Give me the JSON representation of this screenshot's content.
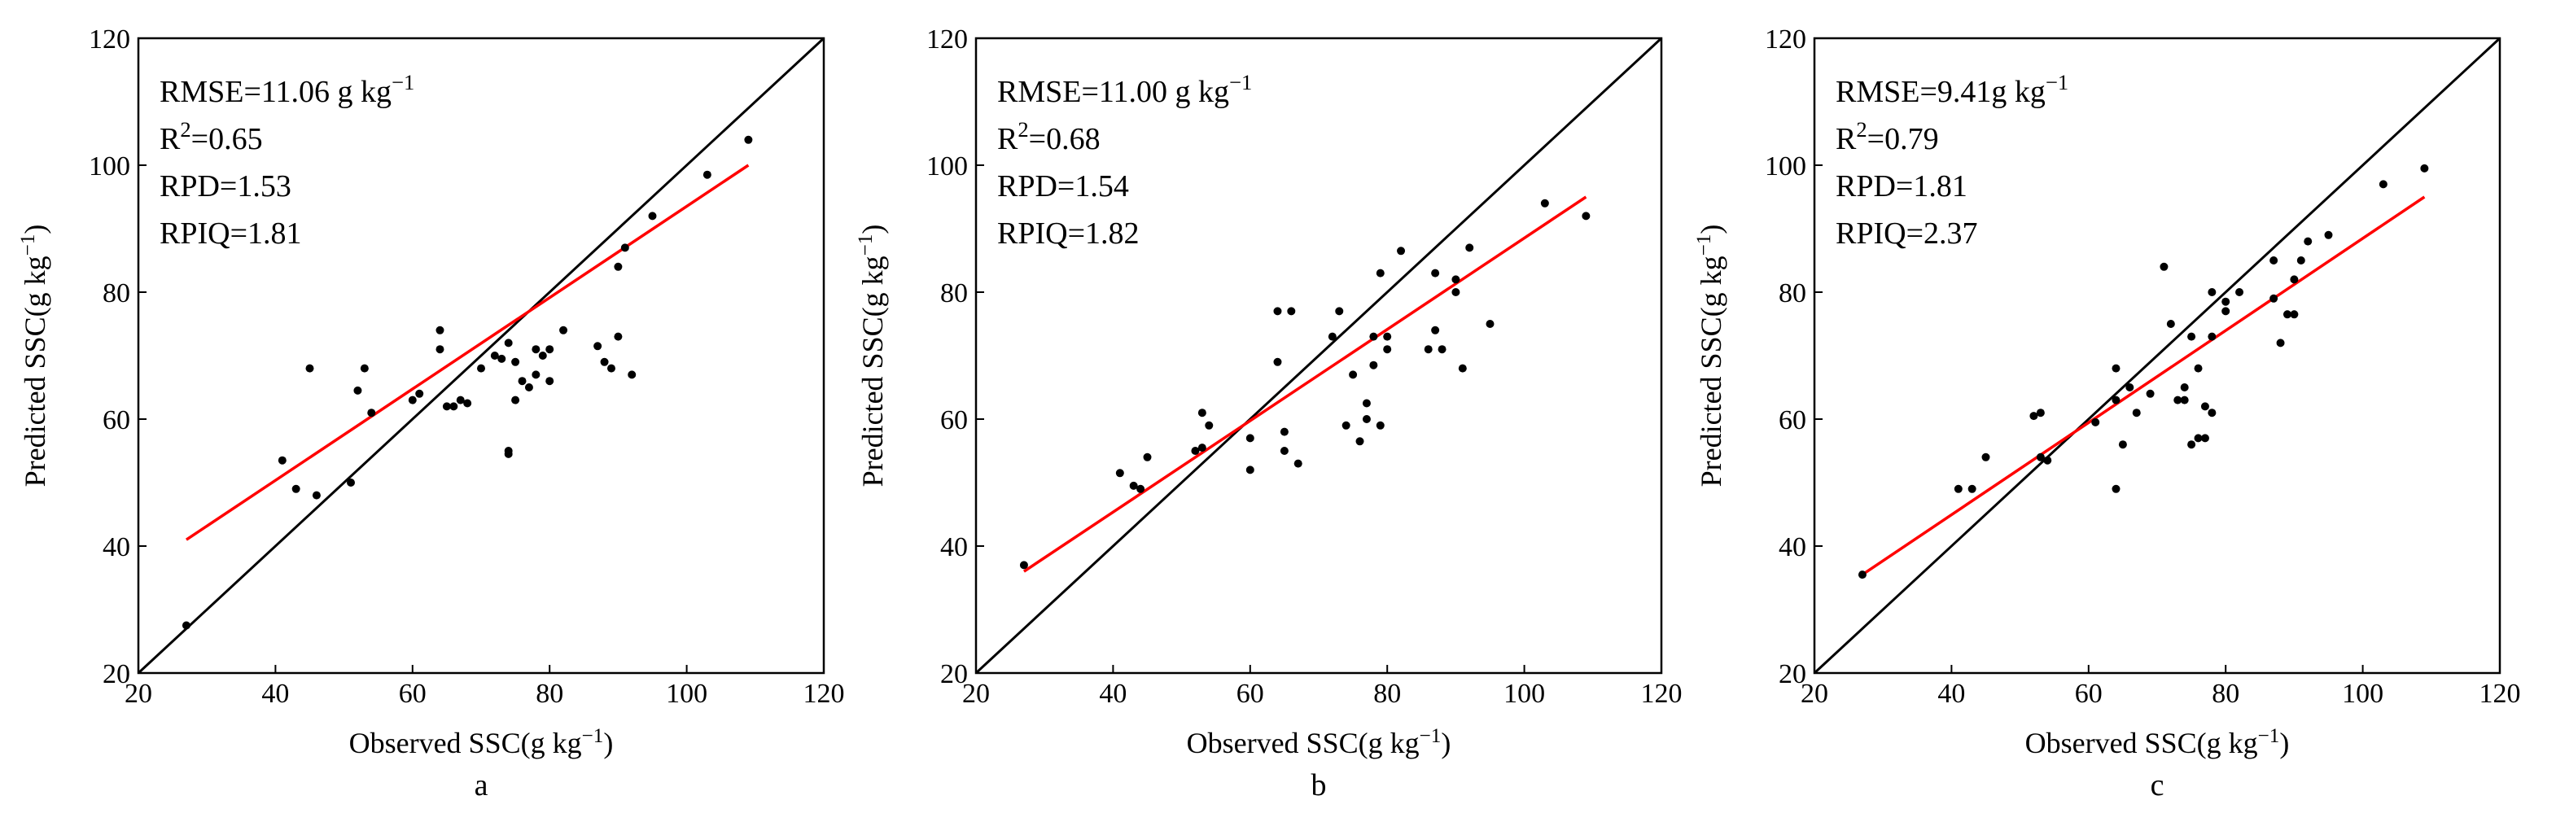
{
  "chart_data": [
    {
      "type": "scatter",
      "panel": "a",
      "xlabel": "Observed SSC(g kg⁻¹)",
      "ylabel": "Predicted SSC(g kg⁻¹)",
      "xlim": [
        20,
        120
      ],
      "ylim": [
        20,
        120
      ],
      "xticks": [
        20,
        40,
        60,
        80,
        100,
        120
      ],
      "yticks": [
        20,
        40,
        60,
        80,
        100,
        120
      ],
      "stats": [
        "RMSE=11.06 g kg⁻¹",
        "R²=0.65",
        "RPD=1.53",
        "RPIQ=1.81"
      ],
      "one_to_one": [
        [
          20,
          20
        ],
        [
          120,
          120
        ]
      ],
      "fit_line": [
        [
          27,
          41
        ],
        [
          109,
          100
        ]
      ],
      "fit_color": "#ff0000",
      "points": [
        [
          27,
          27.5
        ],
        [
          41,
          53.5
        ],
        [
          43,
          49
        ],
        [
          45,
          68
        ],
        [
          46,
          48
        ],
        [
          51,
          50
        ],
        [
          52,
          64.5
        ],
        [
          53,
          68
        ],
        [
          54,
          61
        ],
        [
          60,
          63
        ],
        [
          61,
          64
        ],
        [
          64,
          71
        ],
        [
          64,
          74
        ],
        [
          65,
          62
        ],
        [
          66,
          62
        ],
        [
          67,
          63
        ],
        [
          68,
          62.5
        ],
        [
          70,
          68
        ],
        [
          72,
          70
        ],
        [
          73,
          69.5
        ],
        [
          74,
          55
        ],
        [
          74,
          54.5
        ],
        [
          74,
          72
        ],
        [
          75,
          69
        ],
        [
          75,
          63
        ],
        [
          76,
          66
        ],
        [
          77,
          65
        ],
        [
          78,
          71
        ],
        [
          78,
          67
        ],
        [
          79,
          70
        ],
        [
          80,
          71
        ],
        [
          80,
          66
        ],
        [
          82,
          74
        ],
        [
          87,
          71.5
        ],
        [
          88,
          69
        ],
        [
          89,
          68
        ],
        [
          90,
          73
        ],
        [
          90,
          84
        ],
        [
          91,
          87
        ],
        [
          92,
          67
        ],
        [
          95,
          92
        ],
        [
          103,
          98.5
        ],
        [
          109,
          104
        ]
      ]
    },
    {
      "type": "scatter",
      "panel": "b",
      "xlabel": "Observed SSC(g kg⁻¹)",
      "ylabel": "Predicted SSC(g kg⁻¹)",
      "xlim": [
        20,
        120
      ],
      "ylim": [
        20,
        120
      ],
      "xticks": [
        20,
        40,
        60,
        80,
        100,
        120
      ],
      "yticks": [
        20,
        40,
        60,
        80,
        100,
        120
      ],
      "stats": [
        "RMSE=11.00 g kg⁻¹",
        "R²=0.68",
        "RPD=1.54",
        "RPIQ=1.82"
      ],
      "one_to_one": [
        [
          20,
          20
        ],
        [
          120,
          120
        ]
      ],
      "fit_line": [
        [
          27,
          36
        ],
        [
          109,
          95
        ]
      ],
      "fit_color": "#ff0000",
      "points": [
        [
          27,
          37
        ],
        [
          41,
          51.5
        ],
        [
          43,
          49.5
        ],
        [
          44,
          49
        ],
        [
          45,
          54
        ],
        [
          52,
          55
        ],
        [
          53,
          55.5
        ],
        [
          53,
          61
        ],
        [
          54,
          59
        ],
        [
          60,
          52
        ],
        [
          60,
          57
        ],
        [
          64,
          69
        ],
        [
          64,
          77
        ],
        [
          65,
          58
        ],
        [
          65,
          55
        ],
        [
          66,
          77
        ],
        [
          67,
          53
        ],
        [
          72,
          73
        ],
        [
          73,
          77
        ],
        [
          74,
          59
        ],
        [
          75,
          67
        ],
        [
          76,
          56.5
        ],
        [
          77,
          60
        ],
        [
          77,
          62.5
        ],
        [
          78,
          73
        ],
        [
          78,
          68.5
        ],
        [
          79,
          83
        ],
        [
          79,
          59
        ],
        [
          80,
          71
        ],
        [
          80,
          73
        ],
        [
          82,
          86.5
        ],
        [
          86,
          71
        ],
        [
          87,
          74
        ],
        [
          87,
          83
        ],
        [
          88,
          71
        ],
        [
          90,
          82
        ],
        [
          90,
          80
        ],
        [
          91,
          68
        ],
        [
          92,
          87
        ],
        [
          95,
          75
        ],
        [
          103,
          94
        ],
        [
          109,
          92
        ]
      ]
    },
    {
      "type": "scatter",
      "panel": "c",
      "xlabel": "Observed SSC(g kg⁻¹)",
      "ylabel": "Predicted SSC(g kg⁻¹)",
      "xlim": [
        20,
        120
      ],
      "ylim": [
        20,
        120
      ],
      "xticks": [
        20,
        40,
        60,
        80,
        100,
        120
      ],
      "yticks": [
        20,
        40,
        60,
        80,
        100,
        120
      ],
      "stats": [
        "RMSE=9.41g kg⁻¹",
        "R²=0.79",
        "RPD=1.81",
        "RPIQ=2.37"
      ],
      "one_to_one": [
        [
          20,
          20
        ],
        [
          120,
          120
        ]
      ],
      "fit_line": [
        [
          27,
          35.5
        ],
        [
          109,
          95
        ]
      ],
      "fit_color": "#ff0000",
      "points": [
        [
          27,
          35.5
        ],
        [
          41,
          49
        ],
        [
          43,
          49
        ],
        [
          45,
          54
        ],
        [
          52,
          60.5
        ],
        [
          53,
          61
        ],
        [
          53,
          54
        ],
        [
          54,
          53.5
        ],
        [
          61,
          59.5
        ],
        [
          64,
          63
        ],
        [
          64,
          68
        ],
        [
          64,
          49
        ],
        [
          65,
          56
        ],
        [
          66,
          65
        ],
        [
          67,
          61
        ],
        [
          69,
          64
        ],
        [
          71,
          84
        ],
        [
          72,
          75
        ],
        [
          73,
          63
        ],
        [
          74,
          63
        ],
        [
          74,
          65
        ],
        [
          75,
          73
        ],
        [
          75,
          56
        ],
        [
          76,
          68
        ],
        [
          76,
          57
        ],
        [
          77,
          62
        ],
        [
          77,
          57
        ],
        [
          78,
          61
        ],
        [
          78,
          80
        ],
        [
          78,
          73
        ],
        [
          80,
          77
        ],
        [
          80,
          78.5
        ],
        [
          82,
          80
        ],
        [
          87,
          85
        ],
        [
          87,
          79
        ],
        [
          88,
          72
        ],
        [
          89,
          76.5
        ],
        [
          90,
          76.5
        ],
        [
          90,
          82
        ],
        [
          91,
          85
        ],
        [
          92,
          88
        ],
        [
          95,
          89
        ],
        [
          103,
          97
        ],
        [
          109,
          99.5
        ]
      ]
    },
    {
      "panel_captions": [
        "a",
        "b",
        "c"
      ]
    }
  ]
}
